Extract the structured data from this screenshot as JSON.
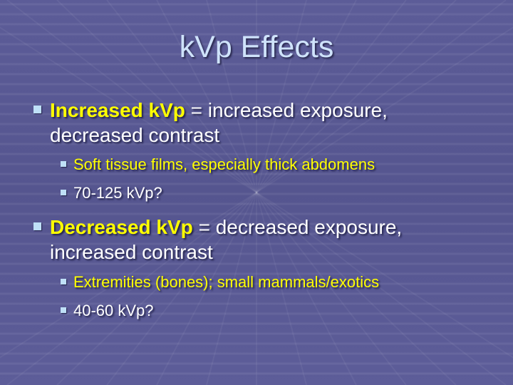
{
  "title": "kVp Effects",
  "bullets": [
    {
      "bold": "Increased kVp",
      "rest": " = increased exposure, decreased contrast",
      "sub": [
        {
          "text": "Soft tissue films, especially thick abdomens",
          "highlight": true
        },
        {
          "text": "70-125 kVp?",
          "highlight": false
        }
      ]
    },
    {
      "bold": "Decreased kVp",
      "rest": " = decreased exposure, increased contrast",
      "sub": [
        {
          "text": "Extremities (bones); small mammals/exotics",
          "highlight": true
        },
        {
          "text": "40-60 kVp?",
          "highlight": false
        }
      ]
    }
  ],
  "colors": {
    "background": "#5a5a94",
    "title": "#cfe3fb",
    "highlight": "#ffff00",
    "bullet": "#bfe0f7"
  }
}
